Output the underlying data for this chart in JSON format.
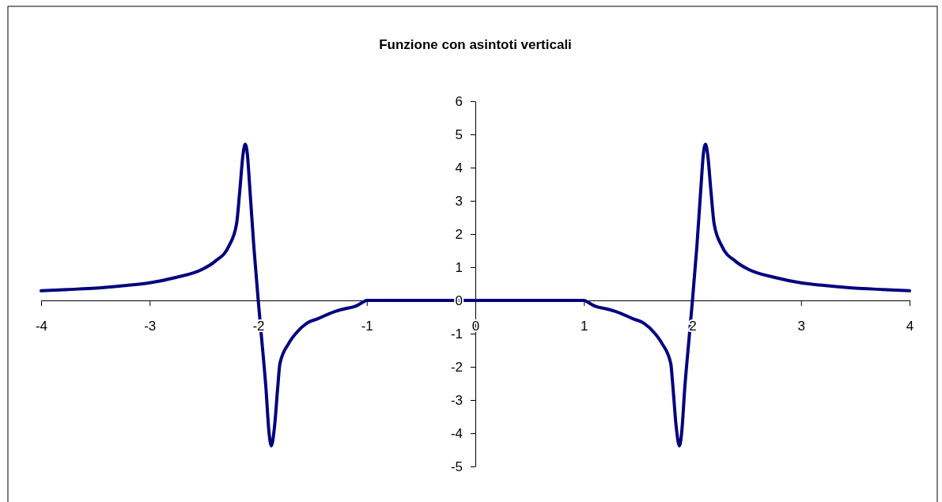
{
  "chart_data": {
    "type": "line",
    "title": "Funzione con asintoti verticali",
    "x": [
      -4,
      -3.75,
      -3.5,
      -3.25,
      -3,
      -2.76,
      -2.52,
      -2.4,
      -2.27,
      -2.2,
      -2.17,
      -2.14,
      -2.12,
      -2.1,
      -2.08,
      -2.04,
      -2,
      -1.97,
      -1.93,
      -1.9,
      -1.88,
      -1.85,
      -1.82,
      -1.8,
      -1.72,
      -1.65,
      -1.55,
      -1.45,
      -1.3,
      -1.2,
      -1.1,
      -1.05,
      -1,
      -0.5,
      0,
      0.5,
      1,
      1.05,
      1.1,
      1.2,
      1.3,
      1.45,
      1.55,
      1.65,
      1.72,
      1.8,
      1.82,
      1.85,
      1.88,
      1.9,
      1.93,
      1.97,
      2,
      2.04,
      2.08,
      2.1,
      2.12,
      2.14,
      2.17,
      2.2,
      2.27,
      2.4,
      2.52,
      2.76,
      3,
      3.25,
      3.5,
      3.75,
      4
    ],
    "series": [
      {
        "color": "#000080",
        "values": [
          0.29,
          0.33,
          0.37,
          0.44,
          0.53,
          0.69,
          0.93,
          1.17,
          1.64,
          2.3,
          3.3,
          4.4,
          4.7,
          4.4,
          3.5,
          1.6,
          0,
          -1.1,
          -2.6,
          -4.0,
          -4.38,
          -3.8,
          -2.6,
          -1.9,
          -1.3,
          -0.98,
          -0.68,
          -0.55,
          -0.34,
          -0.25,
          -0.17,
          -0.08,
          0,
          0,
          0,
          0,
          0,
          -0.08,
          -0.17,
          -0.25,
          -0.34,
          -0.55,
          -0.68,
          -0.98,
          -1.3,
          -1.9,
          -2.6,
          -3.8,
          -4.38,
          -4.0,
          -2.6,
          -1.1,
          0,
          1.6,
          3.5,
          4.4,
          4.7,
          4.4,
          3.3,
          2.3,
          1.64,
          1.17,
          0.93,
          0.69,
          0.53,
          0.44,
          0.37,
          0.33,
          0.29
        ]
      }
    ],
    "xlim": [
      -4,
      4
    ],
    "ylim": [
      -5,
      6
    ],
    "xticks": [
      -4,
      -3,
      -2,
      -1,
      0,
      1,
      2,
      3,
      4
    ],
    "yticks": [
      -5,
      -4,
      -3,
      -2,
      -1,
      0,
      1,
      2,
      3,
      4,
      5,
      6
    ],
    "line_style": "solid"
  }
}
